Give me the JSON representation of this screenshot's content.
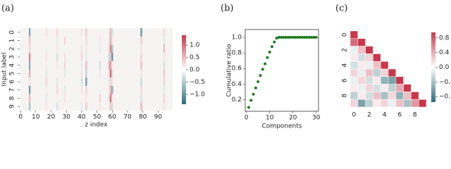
{
  "chart_data": [
    {
      "type": "heatmap",
      "label": "(a)",
      "xlabel": "z index",
      "ylabel": "Input label",
      "rows": [
        "0",
        "1",
        "2",
        "3",
        "4",
        "5",
        "6",
        "7",
        "8",
        "9"
      ],
      "columns": [
        6,
        17,
        24,
        29,
        40,
        43,
        52,
        58,
        59,
        60,
        79,
        94
      ],
      "xlim": [
        0,
        100
      ],
      "xticks": [
        0,
        10,
        20,
        30,
        40,
        50,
        60,
        70,
        80,
        90
      ],
      "values": [
        [
          -0.9,
          0.2,
          0.3,
          0.1,
          0.2,
          0.4,
          0.1,
          0.2,
          0.5,
          -0.3,
          -1.1,
          0.3
        ],
        [
          0.4,
          0.1,
          -0.2,
          0.3,
          0.1,
          0.3,
          0.2,
          -0.2,
          0.6,
          0.2,
          0.4,
          -0.2
        ],
        [
          0.3,
          -0.1,
          0.2,
          -0.1,
          0.2,
          0.2,
          -0.2,
          0.3,
          0.9,
          -0.6,
          0.2,
          0.5
        ],
        [
          0.9,
          0.2,
          -0.3,
          0.2,
          0.3,
          -0.2,
          0.1,
          -0.4,
          0.4,
          -1.1,
          0.3,
          0.2
        ],
        [
          -0.8,
          0.1,
          0.2,
          0.3,
          -0.2,
          0.5,
          -0.3,
          0.6,
          0.7,
          0.2,
          0.5,
          -0.3
        ],
        [
          0.6,
          -0.2,
          0.1,
          -0.2,
          0.2,
          -0.4,
          0.2,
          0.3,
          1.1,
          -0.3,
          0.2,
          0.4
        ],
        [
          0.2,
          0.3,
          -0.2,
          0.1,
          -0.3,
          -1.0,
          0.1,
          -0.2,
          0.3,
          0.2,
          -0.4,
          0.3
        ],
        [
          -1.0,
          0.1,
          0.3,
          -0.2,
          0.2,
          0.3,
          -0.1,
          0.2,
          0.6,
          -0.8,
          0.3,
          -0.2
        ],
        [
          0.5,
          -0.2,
          0.1,
          0.2,
          0.1,
          0.2,
          0.3,
          -0.3,
          1.0,
          0.2,
          -0.3,
          0.3
        ],
        [
          -0.6,
          0.2,
          -0.3,
          0.1,
          -0.2,
          0.4,
          0.2,
          0.2,
          0.4,
          -0.3,
          0.6,
          0.2
        ]
      ],
      "clim": [
        -1.4,
        1.4
      ],
      "cticks": [
        {
          "value": 1,
          "label": "1.0"
        },
        0.5,
        {
          "value": 0,
          "label": "0.0"
        },
        {
          "value": -0.5,
          "label": "−0.5"
        },
        {
          "value": -1,
          "label": "−1.0"
        }
      ],
      "colors": [
        "#2e6e7a",
        "#ffffff",
        "#c8384a"
      ]
    },
    {
      "type": "scatter",
      "label": "(b)",
      "xlabel": "Components",
      "ylabel": "Cumulative ratio",
      "x": [
        1,
        2,
        3,
        4,
        5,
        6,
        7,
        8,
        9,
        10,
        11,
        12,
        13,
        14,
        15,
        16,
        17,
        18,
        19,
        20,
        21,
        22,
        23,
        24,
        25,
        26,
        27,
        28,
        29,
        30
      ],
      "values": [
        0.1,
        0.19,
        0.27,
        0.35,
        0.43,
        0.51,
        0.59,
        0.66,
        0.74,
        0.81,
        0.88,
        0.94,
        0.99,
        1,
        1,
        1,
        1,
        1,
        1,
        1,
        1,
        1,
        1,
        1,
        1,
        1,
        1,
        1,
        1,
        1
      ],
      "color": "#1e7a1e",
      "xlim": [
        -0.5,
        31
      ],
      "xticks": [
        0,
        10,
        20,
        30
      ],
      "ylim": [
        0.05,
        1.1
      ],
      "yticks": [
        0.2,
        0.4,
        0.6,
        0.8,
        {
          "value": 1,
          "label": "1.0"
        }
      ]
    },
    {
      "type": "corr",
      "label": "(c)",
      "ticks": [
        0,
        2,
        4,
        6,
        8
      ],
      "values": [
        [
          1,
          null,
          null,
          null,
          null,
          null,
          null,
          null,
          null,
          null
        ],
        [
          0.7,
          1,
          null,
          null,
          null,
          null,
          null,
          null,
          null,
          null
        ],
        [
          -0.1,
          0.3,
          1,
          null,
          null,
          null,
          null,
          null,
          null,
          null
        ],
        [
          0.1,
          -0.2,
          0.2,
          1,
          null,
          null,
          null,
          null,
          null,
          null
        ],
        [
          -0.2,
          0.1,
          -0.1,
          0.3,
          1,
          null,
          null,
          null,
          null,
          null
        ],
        [
          0.2,
          -0.1,
          0.3,
          -0.3,
          0.2,
          1,
          null,
          null,
          null,
          null
        ],
        [
          -0.1,
          0.2,
          -0.2,
          0.1,
          -0.5,
          -0.6,
          1,
          null,
          null,
          null
        ],
        [
          0.1,
          -0.1,
          0.2,
          -0.2,
          0.1,
          -0.3,
          0.4,
          1,
          null,
          null
        ],
        [
          -0.3,
          0.1,
          -0.2,
          0.3,
          -0.4,
          0.2,
          -0.5,
          0.3,
          1,
          null
        ],
        [
          0.2,
          -0.6,
          -0.3,
          0.1,
          0.2,
          -0.1,
          0.3,
          -0.4,
          0.5,
          1
        ]
      ],
      "clim": [
        -0.95,
        0.95
      ],
      "cticks": [
        0.8,
        0.4,
        {
          "value": 0,
          "label": "0.0"
        },
        {
          "value": -0.4,
          "label": "−0.4"
        },
        {
          "value": -0.8,
          "label": "−0.8"
        }
      ],
      "colors": [
        "#2e6e7a",
        "#ffffff",
        "#c8384a"
      ]
    }
  ]
}
